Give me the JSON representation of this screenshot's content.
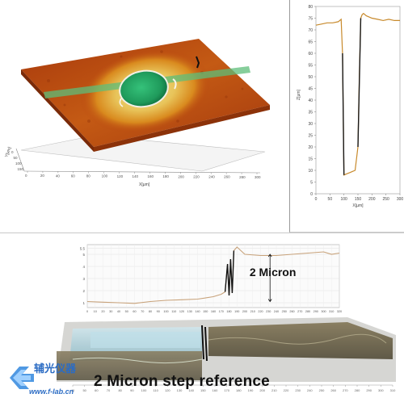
{
  "surface_view": {
    "y_axis_label": "Y[µm]",
    "x_axis_label": "X[µm]",
    "y_ticks": [
      "0",
      "50",
      "100",
      "150"
    ],
    "x_ticks": [
      "0",
      "20",
      "40",
      "60",
      "80",
      "100",
      "120",
      "140",
      "160",
      "180",
      "200",
      "220",
      "240",
      "260",
      "280",
      "300"
    ],
    "colors": {
      "surface_base": "#b8430f",
      "surface_mid": "#d98a1e",
      "halo": "#e8c45a",
      "crater": "#1f9a5b",
      "scan_line": "#5dbd7a"
    }
  },
  "chart_data": [
    {
      "type": "line",
      "x": [
        0,
        20,
        40,
        60,
        80,
        90,
        95,
        100,
        110,
        120,
        130,
        140,
        150,
        155,
        160,
        165,
        170,
        180,
        200,
        220,
        240,
        260,
        280,
        300
      ],
      "series": [
        {
          "values": [
            72,
            72.5,
            73,
            73,
            73.5,
            74.5,
            60,
            8,
            8.5,
            9,
            9.5,
            10,
            20,
            50,
            75,
            76.5,
            77,
            76,
            75,
            74.5,
            74,
            74.5,
            74,
            74
          ]
        }
      ],
      "ylabel": "Z[µm]",
      "xlabel": "X[µm]",
      "xlim": [
        0,
        300
      ],
      "ylim": [
        0,
        80
      ],
      "y_ticks": [
        "0",
        "5",
        "10",
        "15",
        "20",
        "25",
        "30",
        "35",
        "40",
        "45",
        "50",
        "55",
        "60",
        "65",
        "70",
        "75",
        "80"
      ],
      "x_ticks": [
        "0",
        "50",
        "100",
        "150",
        "200",
        "250",
        "300"
      ],
      "grid": false,
      "colors": {
        "line": "#c88a2c",
        "step": "#1a1a1a"
      }
    },
    {
      "type": "line",
      "x": [
        0,
        20,
        40,
        60,
        80,
        100,
        120,
        140,
        160,
        170,
        175,
        178,
        180,
        182,
        184,
        186,
        190,
        200,
        220,
        240,
        260,
        280,
        300,
        310,
        320
      ],
      "series": [
        {
          "values": [
            1.1,
            1.05,
            1.0,
            0.95,
            1.1,
            1.2,
            1.25,
            1.3,
            1.5,
            1.7,
            1.9,
            4.2,
            1.6,
            4.6,
            1.8,
            5.3,
            5.6,
            5.0,
            4.9,
            4.9,
            5.0,
            5.1,
            5.2,
            5.0,
            5.1
          ]
        }
      ],
      "y_ticks": [
        "1",
        "2",
        "3",
        "4",
        "5",
        "5.5"
      ],
      "x_ticks": [
        "0",
        "10",
        "20",
        "30",
        "40",
        "50",
        "60",
        "70",
        "80",
        "90",
        "100",
        "110",
        "120",
        "130",
        "140",
        "150",
        "160",
        "170",
        "180",
        "190",
        "200",
        "210",
        "220",
        "230",
        "240",
        "250",
        "260",
        "270",
        "280",
        "290",
        "300",
        "310",
        "320"
      ],
      "annotation": "2 Micron",
      "grid": true,
      "colors": {
        "line": "#c8a27a",
        "step": "#111111"
      }
    }
  ],
  "step_surface": {
    "x_ticks": [
      "40",
      "50",
      "60",
      "70",
      "80",
      "90",
      "100",
      "110",
      "120",
      "130",
      "140",
      "150",
      "160",
      "170",
      "180",
      "190",
      "200",
      "210",
      "220",
      "230",
      "240",
      "250",
      "260",
      "270",
      "280",
      "290",
      "300",
      "310"
    ],
    "caption": "2 Micron step reference"
  },
  "brand": {
    "name": "辅光仪器",
    "url": "www.f-lab.cn",
    "color": "#2b6cc4"
  }
}
